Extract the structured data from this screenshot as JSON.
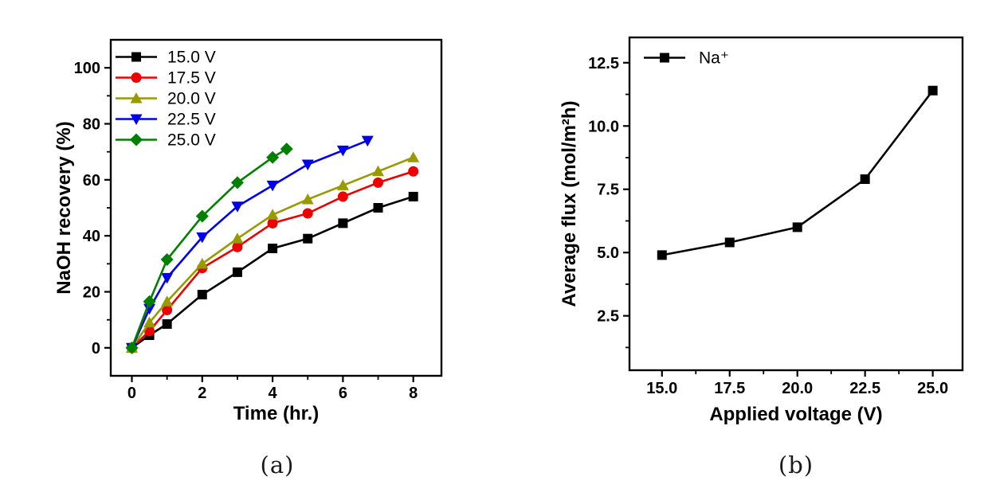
{
  "figure": {
    "background": "#ffffff"
  },
  "captions": {
    "a": "(a)",
    "b": "(b)"
  },
  "colors": {
    "axis": "#000000",
    "series_15v": "#000000",
    "series_17_5v": "#ee0000",
    "series_20v": "#999900",
    "series_22_5v": "#0000ee",
    "series_25v": "#008000",
    "series_na": "#000000"
  },
  "chart_data": [
    {
      "id": "a",
      "type": "line",
      "title": "",
      "xlabel": "Time (hr.)",
      "ylabel": "NaOH recovery (%)",
      "xlim": [
        -0.6,
        8.8
      ],
      "ylim": [
        -10,
        110
      ],
      "xtick_values": [
        0,
        2,
        4,
        6,
        8
      ],
      "xtick_labels": [
        "0",
        "2",
        "4",
        "6",
        "8"
      ],
      "xminor_values": [
        1,
        3,
        5,
        7
      ],
      "ytick_values": [
        0,
        20,
        40,
        60,
        80,
        100
      ],
      "ytick_labels": [
        "0",
        "20",
        "40",
        "60",
        "80",
        "100"
      ],
      "yminor_values": [
        10,
        30,
        50,
        70,
        90
      ],
      "grid": false,
      "legend_position": "top-left-inside",
      "series": [
        {
          "name": "15.0 V",
          "color": "#000000",
          "marker": "square",
          "x": [
            0,
            0.5,
            1,
            2,
            3,
            4,
            5,
            6,
            7,
            8
          ],
          "y": [
            0,
            4.5,
            8.5,
            19,
            27,
            35.5,
            39,
            44.5,
            50,
            54
          ]
        },
        {
          "name": "17.5 V",
          "color": "#ee0000",
          "marker": "circle",
          "x": [
            0,
            0.5,
            1,
            2,
            3,
            4,
            5,
            6,
            7,
            8
          ],
          "y": [
            0,
            6,
            13.5,
            28.5,
            36,
            44.5,
            48,
            54,
            59,
            63
          ]
        },
        {
          "name": "20.0 V",
          "color": "#999900",
          "marker": "triangle-up",
          "x": [
            0,
            0.5,
            1,
            2,
            3,
            4,
            5,
            6,
            7,
            8
          ],
          "y": [
            0,
            9,
            16.5,
            30,
            39,
            47.5,
            53,
            58,
            63,
            68
          ]
        },
        {
          "name": "22.5 V",
          "color": "#0000ee",
          "marker": "triangle-down",
          "x": [
            0,
            0.5,
            1,
            2,
            3,
            4,
            5,
            6,
            6.7
          ],
          "y": [
            0,
            14,
            25,
            39.5,
            50.5,
            58,
            65.5,
            70.5,
            74
          ]
        },
        {
          "name": "25.0 V",
          "color": "#008000",
          "marker": "diamond",
          "x": [
            0,
            0.5,
            1,
            2,
            3,
            4,
            4.4
          ],
          "y": [
            0,
            16.5,
            31.5,
            47,
            59,
            68,
            71
          ]
        }
      ]
    },
    {
      "id": "b",
      "type": "line",
      "title": "",
      "xlabel": "Applied voltage (V)",
      "ylabel": "Average flux (mol/m²h)",
      "xlim": [
        13.8,
        26.1
      ],
      "ylim": [
        0.35,
        13.5
      ],
      "xtick_values": [
        15.0,
        17.5,
        20.0,
        22.5,
        25.0
      ],
      "xtick_labels": [
        "15.0",
        "17.5",
        "20.0",
        "22.5",
        "25.0"
      ],
      "xminor_values": [
        16.25,
        18.75,
        21.25,
        23.75
      ],
      "ytick_values": [
        2.5,
        5.0,
        7.5,
        10.0,
        12.5
      ],
      "ytick_labels": [
        "2.5",
        "5.0",
        "7.5",
        "10.0",
        "12.5"
      ],
      "yminor_values": [
        1.25,
        3.75,
        6.25,
        8.75,
        11.25
      ],
      "grid": false,
      "legend_position": "top-left-inside",
      "series": [
        {
          "name": "Na⁺",
          "color": "#000000",
          "marker": "square",
          "x": [
            15.0,
            17.5,
            20.0,
            22.5,
            25.0
          ],
          "y": [
            4.9,
            5.4,
            6.0,
            7.9,
            11.4
          ]
        }
      ]
    }
  ]
}
